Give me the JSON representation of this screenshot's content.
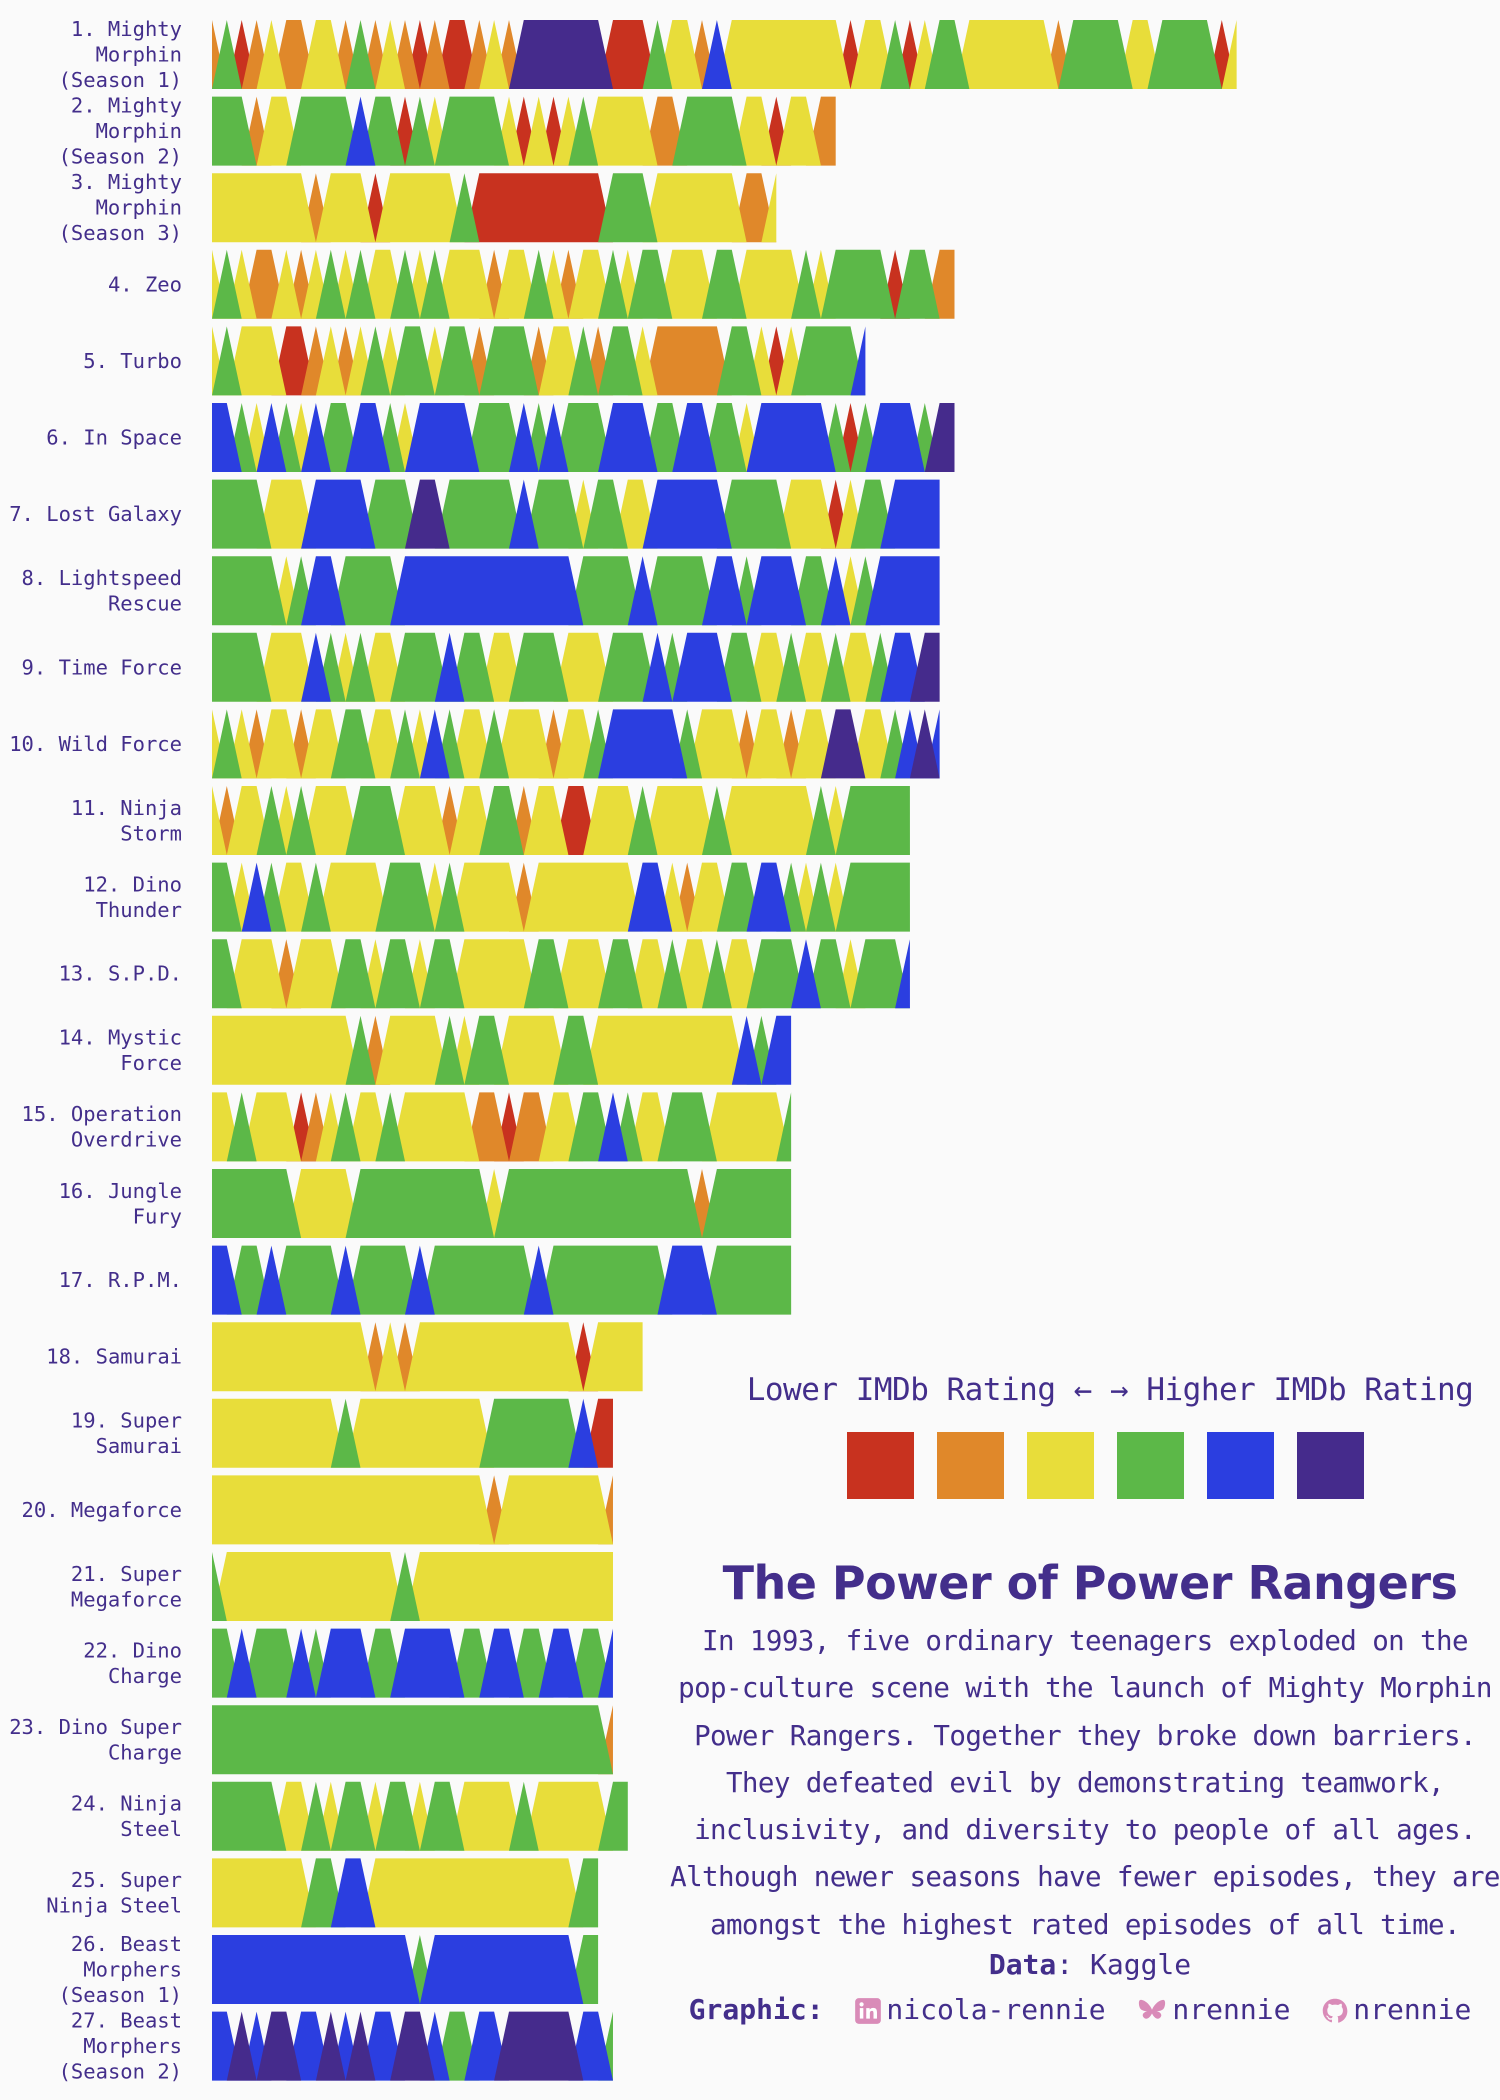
{
  "chart_data": {
    "type": "area",
    "title": "The Power of Power Rangers",
    "subtitle": "In 1993, five ordinary teenagers exploded on the pop-culture scene with the launch of Mighty Morphin Power Rangers. Together they broke down barriers. They defeated evil by demonstrating teamwork, inclusivity, and diversity to people of all ages. Although newer seasons have fewer episodes, they are amongst the highest rated episodes of all time.",
    "xlabel": "",
    "ylabel": "",
    "legend": {
      "low_label": "Lower IMDb Rating ←",
      "high_label": "→ Higher IMDb Rating",
      "placement": "right",
      "colors": [
        "#c8321f",
        "#e0882a",
        "#e8dd3a",
        "#5cb848",
        "#2b3ee0",
        "#452b8c"
      ]
    },
    "rating_scale_note": "Episode ratings encoded as band levels 1 (lowest) to 6 (highest).",
    "seasons": [
      {
        "label": "1. Mighty\nMorphin\n(Season 1)",
        "ratings": [
          2,
          4,
          1,
          2,
          3,
          2,
          2,
          3,
          3,
          2,
          4,
          2,
          3,
          2,
          1,
          2,
          1,
          1,
          2,
          3,
          2,
          6,
          6,
          6,
          6,
          6,
          6,
          1,
          1,
          1,
          4,
          3,
          3,
          2,
          5,
          3,
          3,
          3,
          3,
          3,
          3,
          3,
          3,
          1,
          3,
          3,
          4,
          1,
          3,
          4,
          4,
          3,
          3,
          3,
          3,
          3,
          3,
          2,
          4,
          4,
          4,
          4,
          3,
          3,
          4,
          4,
          4,
          4,
          1,
          3
        ]
      },
      {
        "label": "2. Mighty\nMorphin\n(Season 2)",
        "ratings": [
          4,
          4,
          4,
          2,
          3,
          3,
          4,
          4,
          4,
          4,
          5,
          4,
          4,
          1,
          4,
          3,
          4,
          4,
          4,
          4,
          3,
          1,
          3,
          1,
          3,
          4,
          3,
          3,
          3,
          3,
          2,
          2,
          4,
          4,
          4,
          4,
          3,
          3,
          1,
          3,
          3,
          2,
          2
        ]
      },
      {
        "label": "3. Mighty\nMorphin\n(Season 3)",
        "ratings": [
          3,
          3,
          3,
          3,
          3,
          3,
          3,
          2,
          3,
          3,
          3,
          1,
          3,
          3,
          3,
          3,
          3,
          4,
          1,
          1,
          1,
          1,
          1,
          1,
          1,
          1,
          1,
          4,
          4,
          4,
          3,
          3,
          3,
          3,
          3,
          3,
          2,
          2,
          3
        ]
      },
      {
        "label": "4. Zeo",
        "ratings": [
          3,
          4,
          3,
          2,
          2,
          3,
          2,
          3,
          4,
          3,
          4,
          3,
          3,
          4,
          3,
          4,
          3,
          3,
          3,
          2,
          3,
          3,
          4,
          3,
          2,
          3,
          3,
          4,
          3,
          4,
          4,
          3,
          3,
          3,
          4,
          4,
          3,
          3,
          3,
          3,
          4,
          3,
          4,
          4,
          4,
          4,
          1,
          4,
          4,
          2,
          2
        ]
      },
      {
        "label": "5. Turbo",
        "ratings": [
          3,
          4,
          3,
          3,
          3,
          1,
          1,
          2,
          3,
          2,
          3,
          4,
          3,
          4,
          4,
          3,
          4,
          4,
          2,
          4,
          4,
          4,
          2,
          3,
          3,
          4,
          2,
          4,
          4,
          3,
          2,
          2,
          2,
          2,
          2,
          4,
          4,
          3,
          1,
          3,
          4,
          4,
          4,
          4,
          5
        ]
      },
      {
        "label": "6. In Space",
        "ratings": [
          5,
          5,
          4,
          3,
          5,
          4,
          3,
          5,
          4,
          4,
          5,
          5,
          4,
          3,
          5,
          5,
          5,
          5,
          4,
          4,
          4,
          5,
          4,
          5,
          4,
          4,
          4,
          5,
          5,
          5,
          4,
          4,
          5,
          5,
          4,
          4,
          3,
          5,
          5,
          5,
          5,
          5,
          4,
          1,
          4,
          5,
          5,
          5,
          4,
          6,
          6
        ]
      },
      {
        "label": "7. Lost Galaxy",
        "ratings": [
          4,
          4,
          4,
          4,
          3,
          3,
          3,
          5,
          5,
          5,
          5,
          4,
          4,
          4,
          6,
          6,
          4,
          4,
          4,
          4,
          4,
          5,
          4,
          4,
          4,
          3,
          4,
          4,
          3,
          3,
          5,
          5,
          5,
          5,
          5,
          4,
          4,
          4,
          4,
          3,
          3,
          3,
          1,
          3,
          4,
          4,
          5,
          5,
          5,
          5
        ]
      },
      {
        "label": "8. Lightspeed\nRescue",
        "ratings": [
          4,
          4,
          4,
          4,
          4,
          3,
          4,
          5,
          5,
          4,
          4,
          4,
          4,
          5,
          5,
          5,
          5,
          5,
          5,
          5,
          5,
          5,
          5,
          5,
          5,
          4,
          4,
          4,
          4,
          5,
          4,
          4,
          4,
          4,
          5,
          5,
          4,
          5,
          5,
          5,
          4,
          4,
          5,
          3,
          4,
          5,
          5,
          5,
          5,
          5
        ]
      },
      {
        "label": "9. Time Force",
        "ratings": [
          4,
          4,
          4,
          4,
          3,
          3,
          3,
          5,
          4,
          3,
          4,
          3,
          3,
          4,
          4,
          4,
          5,
          4,
          4,
          3,
          3,
          4,
          4,
          4,
          3,
          3,
          3,
          4,
          4,
          4,
          5,
          4,
          5,
          5,
          5,
          4,
          4,
          3,
          3,
          4,
          3,
          3,
          4,
          3,
          3,
          4,
          5,
          5,
          6,
          6
        ]
      },
      {
        "label": "10. Wild Force",
        "ratings": [
          3,
          4,
          3,
          2,
          3,
          3,
          2,
          3,
          3,
          4,
          4,
          3,
          3,
          4,
          3,
          5,
          4,
          3,
          3,
          4,
          3,
          3,
          3,
          2,
          3,
          3,
          4,
          5,
          5,
          5,
          5,
          5,
          4,
          3,
          3,
          3,
          2,
          3,
          3,
          2,
          3,
          3,
          6,
          6,
          3,
          3,
          4,
          5,
          6,
          5
        ]
      },
      {
        "label": "11. Ninja\nStorm",
        "ratings": [
          3,
          2,
          3,
          3,
          4,
          3,
          4,
          3,
          3,
          3,
          4,
          4,
          4,
          3,
          3,
          3,
          2,
          3,
          3,
          4,
          4,
          2,
          3,
          3,
          1,
          1,
          3,
          3,
          3,
          4,
          3,
          3,
          3,
          3,
          4,
          3,
          3,
          3,
          3,
          3,
          3,
          4,
          3,
          4,
          4,
          4,
          4,
          4
        ]
      },
      {
        "label": "12. Dino\nThunder",
        "ratings": [
          4,
          4,
          3,
          5,
          4,
          3,
          3,
          4,
          3,
          3,
          3,
          3,
          4,
          4,
          4,
          3,
          4,
          3,
          3,
          3,
          3,
          2,
          3,
          3,
          3,
          3,
          3,
          3,
          3,
          5,
          5,
          3,
          2,
          3,
          3,
          4,
          4,
          5,
          5,
          4,
          3,
          4,
          3,
          4,
          4,
          4,
          4,
          4
        ]
      },
      {
        "label": "13. S.P.D.",
        "ratings": [
          4,
          4,
          3,
          3,
          3,
          2,
          3,
          3,
          3,
          4,
          4,
          3,
          4,
          4,
          3,
          4,
          4,
          3,
          3,
          3,
          3,
          3,
          4,
          4,
          3,
          3,
          3,
          4,
          4,
          3,
          3,
          4,
          3,
          3,
          4,
          3,
          3,
          4,
          4,
          4,
          5,
          4,
          4,
          3,
          4,
          4,
          4,
          5
        ]
      },
      {
        "label": "14. Mystic\nForce",
        "ratings": [
          3,
          3,
          3,
          3,
          3,
          3,
          3,
          3,
          3,
          3,
          4,
          2,
          3,
          3,
          3,
          3,
          4,
          3,
          4,
          4,
          3,
          3,
          3,
          3,
          4,
          4,
          3,
          3,
          3,
          3,
          3,
          3,
          3,
          3,
          3,
          3,
          5,
          4,
          5,
          5
        ]
      },
      {
        "label": "15. Operation\nOverdrive",
        "ratings": [
          3,
          3,
          4,
          3,
          3,
          3,
          1,
          2,
          3,
          4,
          3,
          3,
          4,
          3,
          3,
          3,
          3,
          3,
          2,
          2,
          1,
          2,
          2,
          3,
          3,
          4,
          4,
          5,
          4,
          3,
          3,
          4,
          4,
          4,
          3,
          3,
          3,
          3,
          3,
          4
        ]
      },
      {
        "label": "16. Jungle\nFury",
        "ratings": [
          4,
          4,
          4,
          4,
          4,
          4,
          3,
          3,
          3,
          3,
          4,
          4,
          4,
          4,
          4,
          4,
          4,
          4,
          4,
          3,
          4,
          4,
          4,
          4,
          4,
          4,
          4,
          4,
          4,
          4,
          4,
          4,
          4,
          2,
          4,
          4,
          4,
          4,
          4,
          4
        ]
      },
      {
        "label": "17. R.P.M.",
        "ratings": [
          5,
          5,
          4,
          4,
          5,
          4,
          4,
          4,
          4,
          5,
          4,
          4,
          4,
          4,
          5,
          4,
          4,
          4,
          4,
          4,
          4,
          4,
          5,
          4,
          4,
          4,
          4,
          4,
          4,
          4,
          4,
          5,
          5,
          5,
          4,
          4,
          4,
          4,
          4,
          4
        ]
      },
      {
        "label": "18. Samurai",
        "ratings": [
          3,
          3,
          3,
          3,
          3,
          3,
          3,
          3,
          3,
          3,
          3,
          2,
          3,
          2,
          3,
          3,
          3,
          3,
          3,
          3,
          3,
          3,
          3,
          3,
          3,
          1,
          3,
          3,
          3,
          3
        ]
      },
      {
        "label": "19. Super\nSamurai",
        "ratings": [
          3,
          3,
          3,
          3,
          3,
          3,
          3,
          3,
          3,
          4,
          3,
          3,
          3,
          3,
          3,
          3,
          3,
          3,
          3,
          4,
          4,
          4,
          4,
          4,
          4,
          5,
          1,
          1
        ]
      },
      {
        "label": "20. Megaforce",
        "ratings": [
          3,
          3,
          3,
          3,
          3,
          3,
          3,
          3,
          3,
          3,
          3,
          3,
          3,
          3,
          3,
          3,
          3,
          3,
          3,
          2,
          3,
          3,
          3,
          3,
          3,
          3,
          3,
          2
        ]
      },
      {
        "label": "21. Super\nMegaforce",
        "ratings": [
          4,
          3,
          3,
          3,
          3,
          3,
          3,
          3,
          3,
          3,
          3,
          3,
          3,
          4,
          3,
          3,
          3,
          3,
          3,
          3,
          3,
          3,
          3,
          3,
          3,
          3,
          3,
          3
        ]
      },
      {
        "label": "22. Dino\nCharge",
        "ratings": [
          4,
          4,
          5,
          4,
          4,
          4,
          5,
          4,
          5,
          5,
          5,
          4,
          4,
          5,
          5,
          5,
          5,
          4,
          4,
          5,
          5,
          4,
          4,
          5,
          5,
          4,
          4,
          5
        ]
      },
      {
        "label": "23. Dino Super\nCharge",
        "ratings": [
          4,
          4,
          4,
          4,
          4,
          4,
          4,
          4,
          4,
          4,
          4,
          4,
          4,
          4,
          4,
          4,
          4,
          4,
          4,
          4,
          4,
          4,
          4,
          4,
          4,
          4,
          4,
          2
        ]
      },
      {
        "label": "24. Ninja\nSteel",
        "ratings": [
          4,
          4,
          4,
          4,
          4,
          3,
          3,
          4,
          3,
          4,
          4,
          3,
          4,
          4,
          3,
          4,
          4,
          3,
          3,
          3,
          3,
          4,
          3,
          3,
          3,
          3,
          3,
          4,
          4
        ]
      },
      {
        "label": "25. Super\nNinja Steel",
        "ratings": [
          3,
          3,
          3,
          3,
          3,
          3,
          3,
          4,
          4,
          5,
          5,
          3,
          3,
          3,
          3,
          3,
          3,
          3,
          3,
          3,
          3,
          3,
          3,
          3,
          3,
          4,
          4
        ]
      },
      {
        "label": "26. Beast\nMorphers\n(Season 1)",
        "ratings": [
          5,
          5,
          5,
          5,
          5,
          5,
          5,
          5,
          5,
          5,
          5,
          5,
          5,
          5,
          4,
          5,
          5,
          5,
          5,
          5,
          5,
          5,
          5,
          5,
          5,
          4,
          4
        ]
      },
      {
        "label": "27. Beast\nMorphers\n(Season 2)",
        "ratings": [
          5,
          5,
          6,
          5,
          6,
          6,
          5,
          5,
          6,
          5,
          6,
          5,
          5,
          6,
          6,
          5,
          4,
          4,
          5,
          5,
          6,
          6,
          6,
          6,
          6,
          5,
          5,
          4
        ]
      }
    ]
  },
  "legend_low": "Lower IMDb Rating ←",
  "legend_high": "→ Higher IMDb Rating",
  "data_label": "Data",
  "data_source": ": Kaggle",
  "graphic_label": "Graphic",
  "linkedin_handle": "nicola-rennie",
  "bluesky_handle": "nrennie",
  "github_handle": "nrennie",
  "icons": [
    "linkedin-icon",
    "butterfly-icon",
    "github-icon"
  ]
}
